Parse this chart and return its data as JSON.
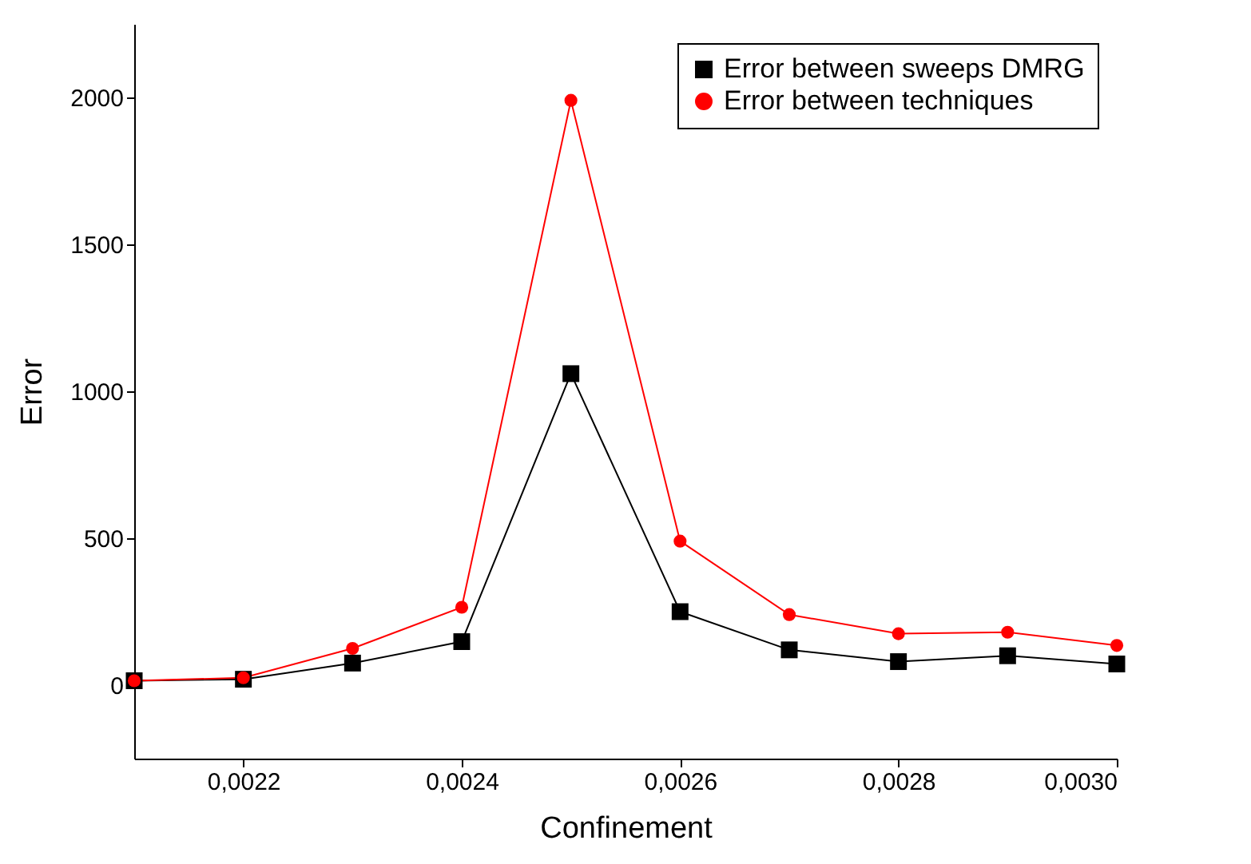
{
  "chart_data": {
    "type": "line",
    "xlabel": "Confinement",
    "ylabel": "Error",
    "x": [
      0.0021,
      0.0022,
      0.0023,
      0.0024,
      0.0025,
      0.0026,
      0.0027,
      0.0028,
      0.0029,
      0.003
    ],
    "series": [
      {
        "name": "Error between sweeps DMRG",
        "color": "#000000",
        "marker": "square",
        "values": [
          15,
          20,
          75,
          148,
          1060,
          250,
          120,
          80,
          100,
          72
        ]
      },
      {
        "name": "Error between techniques",
        "color": "#ff0000",
        "marker": "circle",
        "values": [
          15,
          25,
          125,
          265,
          1990,
          490,
          240,
          175,
          180,
          135
        ]
      }
    ],
    "xlim": [
      0.0021,
      0.003
    ],
    "xticks": [
      {
        "value": 0.0022,
        "label": "0,0022"
      },
      {
        "value": 0.0024,
        "label": "0,0024"
      },
      {
        "value": 0.0026,
        "label": "0,0026"
      },
      {
        "value": 0.0028,
        "label": "0,0028"
      },
      {
        "value": 0.003,
        "label": "0,0030"
      }
    ],
    "ylim": [
      -250,
      2250
    ],
    "yticks": [
      0,
      500,
      1000,
      1500,
      2000
    ],
    "grid": false,
    "legend": "top right",
    "line_style": "solid"
  }
}
